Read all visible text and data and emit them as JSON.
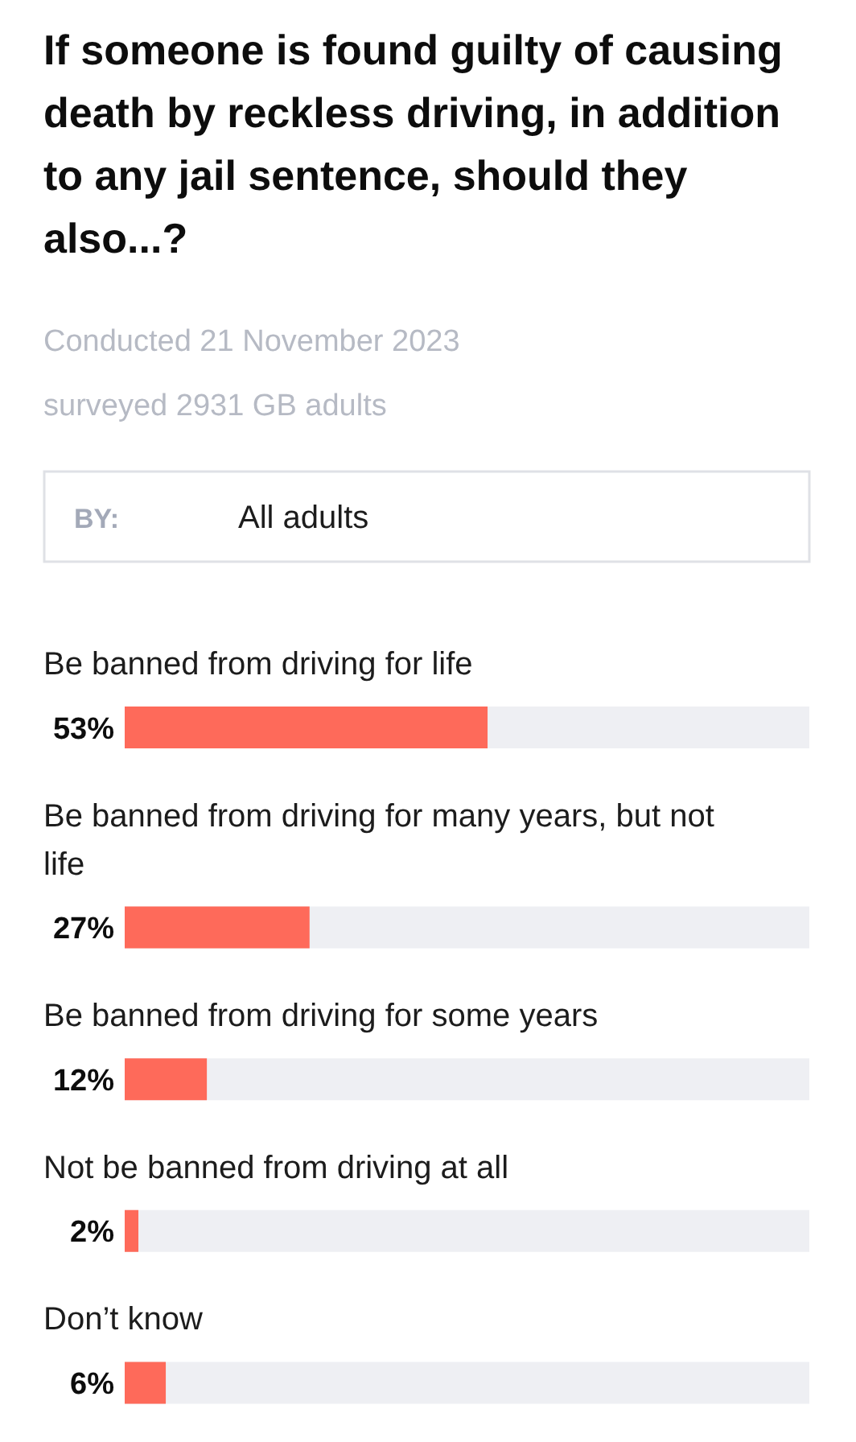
{
  "chart_data": {
    "type": "bar",
    "orientation": "horizontal",
    "title": "If someone is found guilty of causing death by reckless driving, in addition to any jail sentence, should they also...?",
    "subtitle": "Conducted 21 November 2023",
    "annotations": [
      "surveyed 2931 GB adults",
      "BY:",
      "All adults"
    ],
    "categories": [
      "Be banned from driving for life",
      "Be banned from driving for many years, but not life",
      "Be banned from driving for some years",
      "Not be banned from driving at all",
      "Don’t know"
    ],
    "values": [
      53,
      27,
      12,
      2,
      6
    ],
    "color": "#fe6a5a",
    "value_labels": [
      "53%",
      "27%",
      "12%",
      "2%",
      "6%"
    ],
    "tick_labels": "y"
  }
}
